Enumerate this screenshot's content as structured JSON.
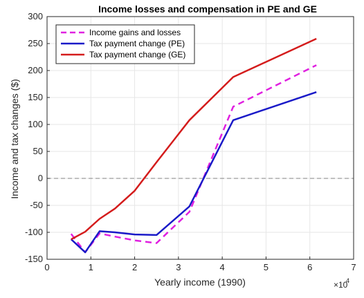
{
  "chart_data": {
    "type": "line",
    "title": "Income losses and compensation in PE and GE",
    "xlabel": "Yearly income (1990)",
    "ylabel": "Income and tax changes ($)",
    "x_exponent_label": "×10",
    "x_exponent_power": "4",
    "xlim": [
      0,
      7
    ],
    "ylim": [
      -150,
      300
    ],
    "x_ticks": [
      0,
      1,
      2,
      3,
      4,
      5,
      6,
      7
    ],
    "y_ticks": [
      -150,
      -100,
      -50,
      0,
      50,
      100,
      150,
      200,
      250,
      300
    ],
    "grid": true,
    "legend_position": "top-left",
    "reference_line": {
      "y": 0,
      "style": "dashed",
      "color": "#808080"
    },
    "series": [
      {
        "name": "Income gains and losses",
        "style": "dashed",
        "color": "#e020e0",
        "x": [
          0.55,
          0.87,
          1.2,
          1.55,
          2.0,
          2.5,
          3.25,
          4.25,
          6.15
        ],
        "y": [
          -103,
          -137,
          -102,
          -108,
          -115,
          -120,
          -62,
          133,
          210
        ]
      },
      {
        "name": "Tax payment change (PE)",
        "style": "solid",
        "color": "#1a1ac8",
        "x": [
          0.55,
          0.87,
          1.2,
          1.55,
          2.0,
          2.5,
          3.25,
          4.25,
          6.15
        ],
        "y": [
          -113,
          -137,
          -98,
          -100,
          -104,
          -105,
          -52,
          108,
          160
        ]
      },
      {
        "name": "Tax payment change (GE)",
        "style": "solid",
        "color": "#d41c1c",
        "x": [
          0.55,
          0.87,
          1.2,
          1.55,
          2.0,
          2.5,
          3.25,
          4.25,
          6.15
        ],
        "y": [
          -113,
          -99,
          -75,
          -56,
          -23,
          30,
          108,
          188,
          259
        ]
      }
    ]
  }
}
